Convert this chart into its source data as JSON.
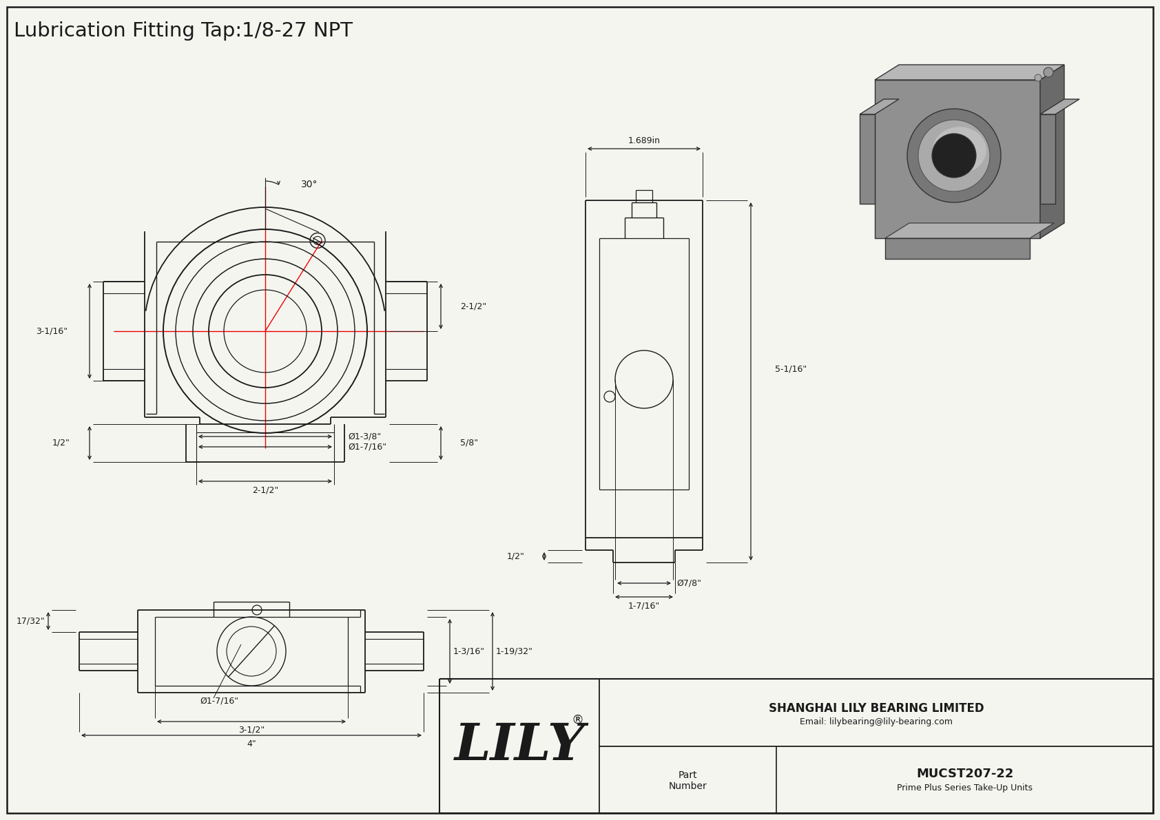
{
  "title": "Lubrication Fitting Tap:1/8-27 NPT",
  "bg_color": "#f5f5f0",
  "line_color": "#1a1a1a",
  "red_color": "#ee0000",
  "part_number": "MUCST207-22",
  "part_series": "Prime Plus Series Take-Up Units",
  "company": "SHANGHAI LILY BEARING LIMITED",
  "email": "Email: lilybearing@lily-bearing.com",
  "dims": {
    "angle_label": "30°",
    "d_2half": "2-1/2\"",
    "d_3_116": "3-1/16\"",
    "d_half": "1/2\"",
    "d_dia138": "Ø1-3/8\"",
    "d_dia1716": "Ø1-7/16\"",
    "d_2half2": "2-1/2\"",
    "d_58": "5/8\"",
    "side_w": "1.689in",
    "side_h": "5-1/16\"",
    "side_half": "1/2\"",
    "side_d78": "Ø7/8\"",
    "side_1716": "1-7/16\"",
    "bot_1732": "17/32\"",
    "bot_dia1716": "Ø1-7/16\"",
    "bot_312": "3-1/2\"",
    "bot_4": "4\"",
    "bot_1316": "1-3/16\"",
    "bot_11932": "1-19/32\""
  }
}
